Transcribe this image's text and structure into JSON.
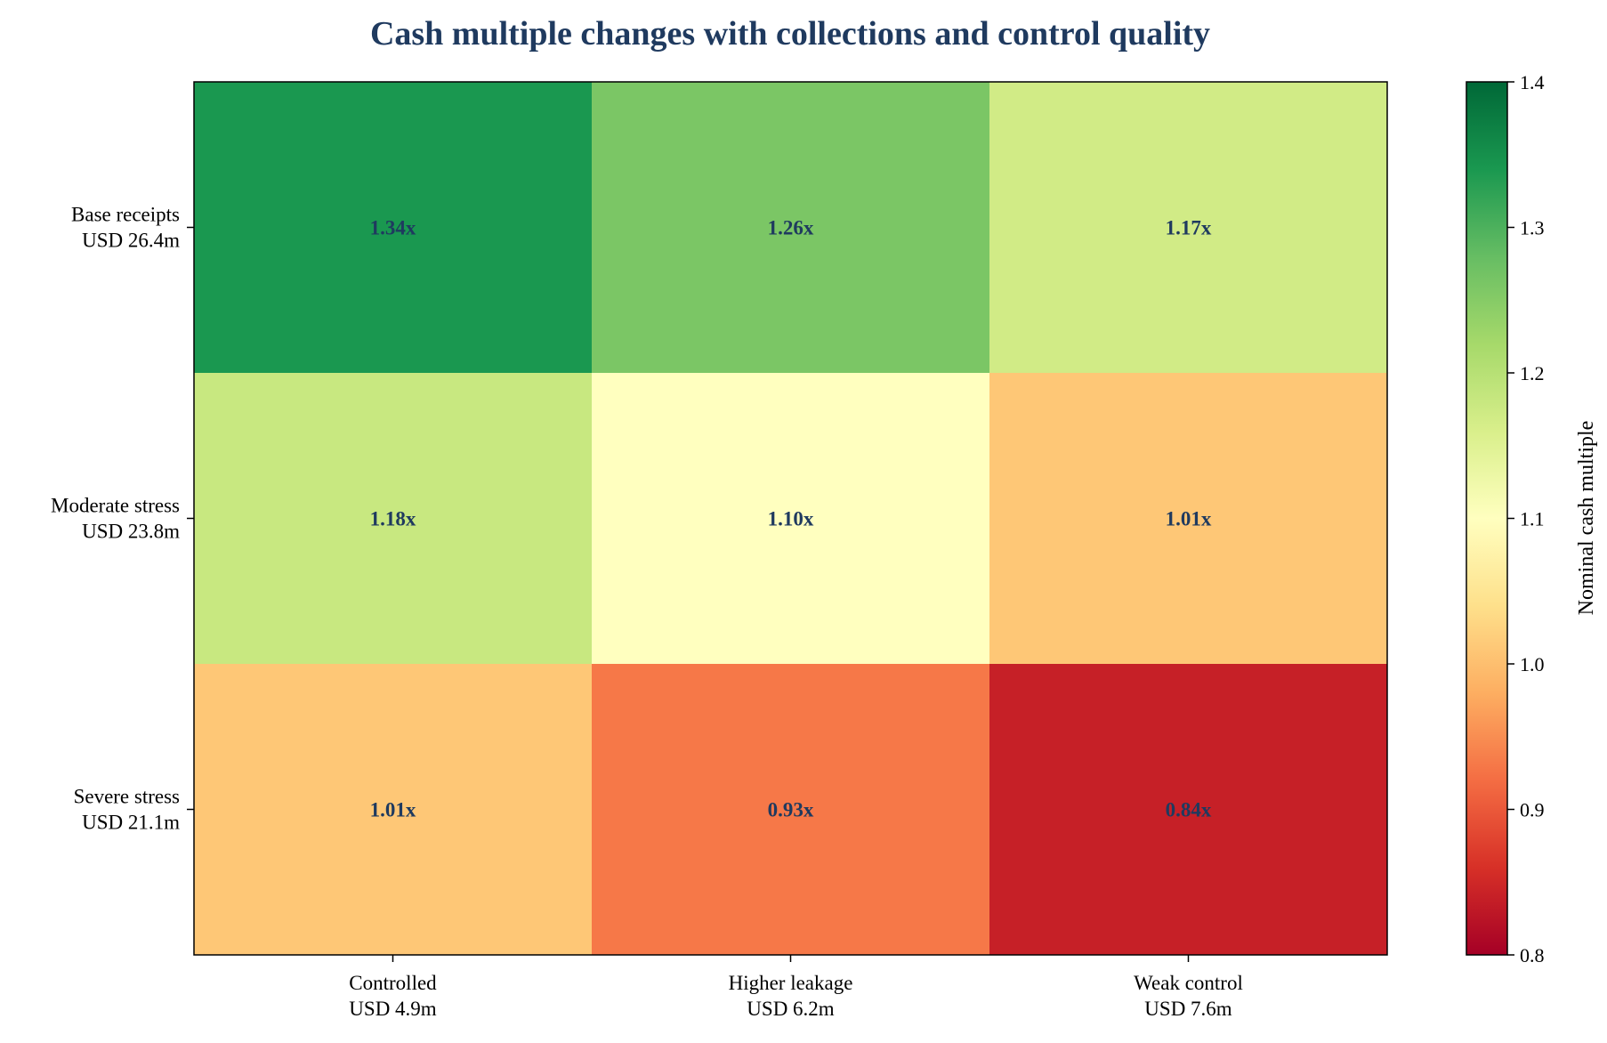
{
  "chart_data": {
    "type": "heatmap",
    "title": "Cash multiple changes with collections and control quality",
    "rows": [
      {
        "line1": "Base receipts",
        "line2": "USD 26.4m"
      },
      {
        "line1": "Moderate stress",
        "line2": "USD 23.8m"
      },
      {
        "line1": "Severe stress",
        "line2": "USD 21.1m"
      }
    ],
    "columns": [
      {
        "line1": "Controlled",
        "line2": "USD 4.9m"
      },
      {
        "line1": "Higher leakage",
        "line2": "USD 6.2m"
      },
      {
        "line1": "Weak control",
        "line2": "USD 7.6m"
      }
    ],
    "values": [
      [
        1.34,
        1.26,
        1.17
      ],
      [
        1.18,
        1.1,
        1.01
      ],
      [
        1.01,
        0.93,
        0.84
      ]
    ],
    "value_labels": [
      [
        "1.34x",
        "1.26x",
        "1.17x"
      ],
      [
        "1.18x",
        "1.10x",
        "1.01x"
      ],
      [
        "1.01x",
        "0.93x",
        "0.84x"
      ]
    ],
    "colorbar": {
      "label": "Nominal cash multiple",
      "range": [
        0.8,
        1.4
      ],
      "ticks": [
        "0.8",
        "0.9",
        "1.0",
        "1.1",
        "1.2",
        "1.3",
        "1.4"
      ],
      "colormap": "RdYlGn"
    }
  }
}
